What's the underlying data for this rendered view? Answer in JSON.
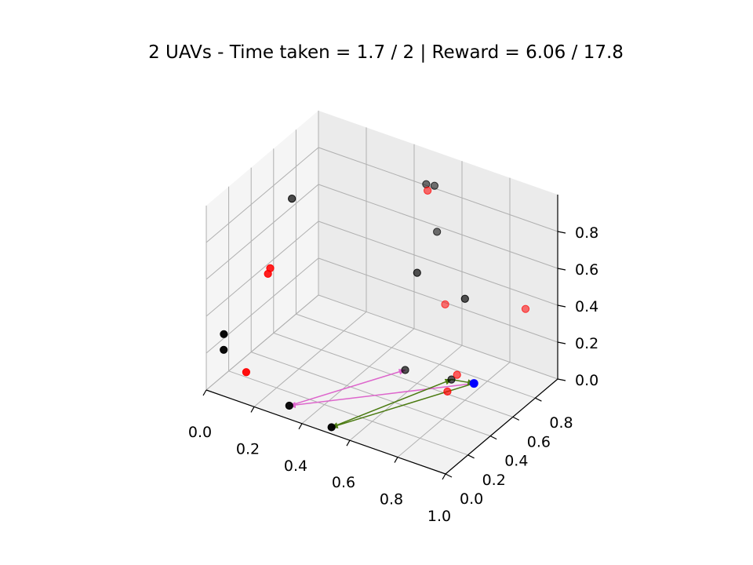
{
  "chart_data": {
    "type": "scatter",
    "title": "2 UAVs - Time taken = 1.7 / 2 | Reward = 6.06 / 17.8",
    "projection": "3d",
    "grid": true,
    "legend": "none",
    "colors": {
      "target_black": "#000000",
      "target_red": "#ff0000",
      "uav_blue": "#0000ff",
      "path_uav_1": "#dd66cc",
      "path_uav_2": "#4a7a10",
      "pane": "#f2f2f2",
      "grid": "#b0b0b0"
    },
    "axes": {
      "x": {
        "ticks": [
          "0.0",
          "0.2",
          "0.4",
          "0.6",
          "0.8",
          "1.0"
        ]
      },
      "y": {
        "ticks": [
          "0.0",
          "0.2",
          "0.4",
          "0.6",
          "0.8"
        ]
      },
      "z": {
        "ticks": [
          "0.0",
          "0.2",
          "0.4",
          "0.6",
          "0.8"
        ]
      }
    },
    "points_black": [
      {
        "x": 0.53,
        "y": 0.83,
        "z": 0.93
      },
      {
        "x": 0.56,
        "y": 0.84,
        "z": 0.93
      },
      {
        "x": 0.58,
        "y": 0.82,
        "z": 0.7
      },
      {
        "x": 0.1,
        "y": 0.55,
        "z": 0.8
      },
      {
        "x": 0.6,
        "y": 0.6,
        "z": 0.6
      },
      {
        "x": 0.8,
        "y": 0.6,
        "z": 0.55
      },
      {
        "x": 0.05,
        "y": 0.05,
        "z": 0.3
      },
      {
        "x": 0.04,
        "y": 0.07,
        "z": 0.2
      },
      {
        "x": 0.55,
        "y": 0.6,
        "z": 0.05
      },
      {
        "x": 0.3,
        "y": 0.1,
        "z": 0.0
      },
      {
        "x": 0.5,
        "y": 0.05,
        "z": 0.0
      },
      {
        "x": 0.72,
        "y": 0.65,
        "z": 0.05
      }
    ],
    "points_red": [
      {
        "x": 0.55,
        "y": 0.8,
        "z": 0.92
      },
      {
        "x": 0.15,
        "y": 0.25,
        "z": 0.6
      },
      {
        "x": 0.15,
        "y": 0.23,
        "z": 0.58
      },
      {
        "x": 0.6,
        "y": 0.85,
        "z": 0.3
      },
      {
        "x": 0.95,
        "y": 0.82,
        "z": 0.45
      },
      {
        "x": 0.12,
        "y": 0.1,
        "z": 0.1
      },
      {
        "x": 0.72,
        "y": 0.7,
        "z": 0.05
      },
      {
        "x": 0.75,
        "y": 0.55,
        "z": 0.05
      }
    ],
    "uav_position": {
      "x": 0.8,
      "y": 0.68,
      "z": 0.05
    },
    "paths": [
      {
        "color_key": "path_uav_1",
        "points": [
          {
            "x": 0.8,
            "y": 0.68,
            "z": 0.05
          },
          {
            "x": 0.3,
            "y": 0.1,
            "z": 0.0
          },
          {
            "x": 0.55,
            "y": 0.6,
            "z": 0.05
          }
        ]
      },
      {
        "color_key": "path_uav_2",
        "points": [
          {
            "x": 0.8,
            "y": 0.68,
            "z": 0.05
          },
          {
            "x": 0.5,
            "y": 0.05,
            "z": 0.0
          },
          {
            "x": 0.72,
            "y": 0.65,
            "z": 0.05
          },
          {
            "x": 0.8,
            "y": 0.68,
            "z": 0.05
          }
        ]
      }
    ]
  }
}
